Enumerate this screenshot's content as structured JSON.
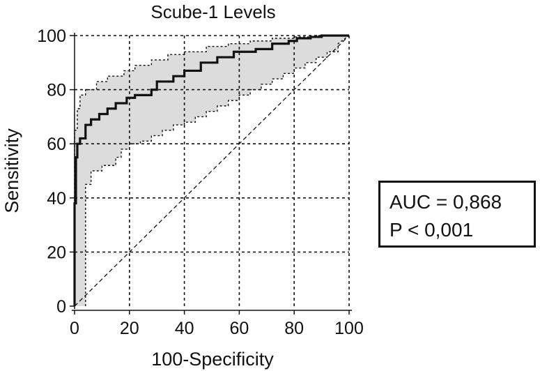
{
  "chart_data": {
    "type": "line",
    "title": "Scube-1 Levels",
    "xlabel": "100-Specificity",
    "ylabel": "Sensitivity",
    "xlim": [
      0,
      100
    ],
    "ylim": [
      0,
      100
    ],
    "x_ticks": [
      0,
      20,
      40,
      60,
      80,
      100
    ],
    "y_ticks": [
      0,
      20,
      40,
      60,
      80,
      100
    ],
    "grid": true,
    "series": [
      {
        "role": "roc-curve",
        "x": [
          0,
          0,
          0.5,
          0.5,
          1,
          1,
          2,
          2,
          4,
          4,
          6,
          6,
          9,
          9,
          12,
          12,
          15,
          15,
          19,
          19,
          22,
          22,
          28,
          28,
          30,
          30,
          36,
          36,
          40,
          40,
          46,
          46,
          52,
          52,
          58,
          58,
          66,
          66,
          72,
          72,
          78,
          78,
          81,
          81,
          86,
          86,
          90,
          90,
          100
        ],
        "y": [
          0,
          38,
          38,
          55,
          55,
          60,
          60,
          62,
          62,
          67,
          67,
          69,
          69,
          71,
          71,
          73,
          73,
          75,
          75,
          77,
          77,
          78,
          78,
          80,
          80,
          83,
          83,
          85,
          85,
          87,
          87,
          90,
          90,
          92,
          92,
          94,
          94,
          95,
          95,
          97,
          97,
          98,
          98,
          99,
          99,
          99.5,
          99.5,
          100,
          100
        ]
      },
      {
        "role": "ci-upper",
        "x": [
          0,
          0,
          1,
          1,
          2,
          2,
          4,
          4,
          8,
          8,
          12,
          12,
          18,
          18,
          22,
          22,
          28,
          28,
          34,
          34,
          40,
          40,
          48,
          48,
          56,
          56,
          64,
          64,
          72,
          72,
          80,
          80,
          88,
          88,
          100
        ],
        "y": [
          0,
          65,
          65,
          73,
          73,
          78,
          78,
          80,
          80,
          83,
          83,
          85,
          85,
          87,
          87,
          89,
          89,
          91,
          91,
          93,
          93,
          94,
          94,
          96,
          96,
          97,
          97,
          98,
          98,
          99,
          99,
          99.5,
          99.5,
          100,
          100
        ]
      },
      {
        "role": "ci-lower",
        "x": [
          4,
          4,
          6,
          6,
          10,
          10,
          15,
          15,
          17,
          17,
          20,
          20,
          24,
          24,
          28,
          28,
          32,
          32,
          36,
          36,
          40,
          40,
          44,
          44,
          48,
          48,
          52,
          52,
          56,
          56,
          60,
          60,
          64,
          64,
          68,
          68,
          72,
          72,
          76,
          76,
          80,
          80,
          84,
          84,
          88,
          88,
          92,
          92,
          96,
          96,
          100
        ],
        "y": [
          0,
          45,
          45,
          50,
          50,
          52,
          52,
          55,
          55,
          58,
          58,
          60,
          60,
          61,
          61,
          63,
          63,
          65,
          65,
          67,
          67,
          68,
          68,
          70,
          70,
          72,
          72,
          74,
          74,
          76,
          76,
          78,
          78,
          80,
          80,
          82,
          82,
          84,
          84,
          86,
          86,
          88,
          88,
          90,
          90,
          92,
          92,
          94,
          94,
          97,
          100
        ]
      },
      {
        "role": "reference-diagonal",
        "x": [
          0,
          100
        ],
        "y": [
          0,
          100
        ]
      }
    ],
    "annotations": [
      "AUC = 0,868",
      "P < 0,001"
    ]
  }
}
